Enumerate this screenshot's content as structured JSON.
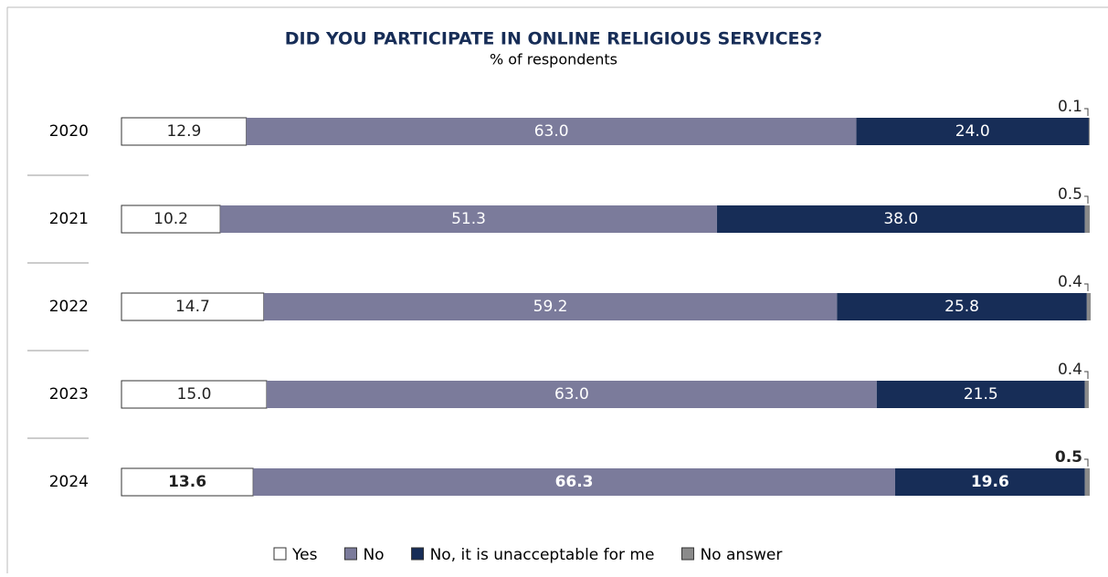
{
  "chart_data": {
    "type": "stacked_bar_horizontal",
    "title": "DID YOU PARTICIPATE IN ONLINE RELIGIOUS SERVICES?",
    "subtitle": "% of respondents",
    "categories": [
      "2020",
      "2021",
      "2022",
      "2023",
      "2024"
    ],
    "xlim": [
      0,
      100
    ],
    "highlight_index": 4,
    "series": [
      {
        "name": "Yes",
        "color": "#ffffff",
        "values": [
          12.9,
          10.2,
          14.7,
          15.0,
          13.6
        ],
        "value_labels": [
          "12.9",
          "10.2",
          "14.7",
          "15.0",
          "13.6"
        ]
      },
      {
        "name": "No",
        "color": "#7b7b9b",
        "values": [
          63.0,
          51.3,
          59.2,
          63.0,
          66.3
        ],
        "value_labels": [
          "63.0",
          "51.3",
          "59.2",
          "63.0",
          "66.3"
        ]
      },
      {
        "name": "No, it is unacceptable for me",
        "color": "#172d57",
        "values": [
          24.0,
          38.0,
          25.8,
          21.5,
          19.6
        ],
        "value_labels": [
          "24.0",
          "38.0",
          "25.8",
          "21.5",
          "19.6"
        ]
      },
      {
        "name": "No answer",
        "color": "#8a8a8a",
        "values": [
          0.1,
          0.5,
          0.4,
          0.4,
          0.5
        ],
        "value_labels": [
          "0.1",
          "0.5",
          "0.4",
          "0.4",
          "0.5"
        ]
      }
    ]
  }
}
